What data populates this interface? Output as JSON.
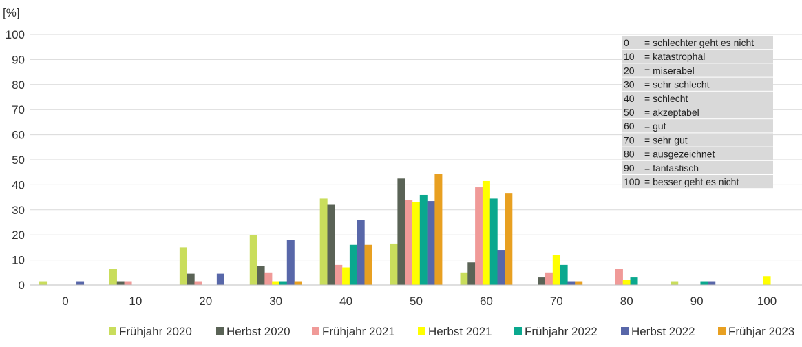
{
  "chart_data": {
    "type": "bar",
    "unit_label": "[%]",
    "categories": [
      "0",
      "10",
      "20",
      "30",
      "40",
      "50",
      "60",
      "70",
      "80",
      "90",
      "100"
    ],
    "ylim": [
      0,
      100
    ],
    "y_ticks": [
      0,
      10,
      20,
      30,
      40,
      50,
      60,
      70,
      80,
      90,
      100
    ],
    "grid": true,
    "legend_position": "bottom",
    "series": [
      {
        "name": "Frühjahr 2020",
        "color": "#c9dd5c",
        "values": [
          1.5,
          6.5,
          15,
          20,
          34.5,
          16.5,
          5,
          0,
          0,
          1.5,
          0
        ]
      },
      {
        "name": "Herbst 2020",
        "color": "#5a6356",
        "values": [
          0,
          1.5,
          4.5,
          7.5,
          32,
          42.5,
          9,
          3,
          0,
          0,
          0
        ]
      },
      {
        "name": "Frühjahr 2021",
        "color": "#f09a98",
        "values": [
          0,
          1.5,
          1.5,
          5,
          8,
          34,
          39,
          5,
          6.5,
          0,
          0
        ]
      },
      {
        "name": "Herbst 2021",
        "color": "#ffff00",
        "values": [
          0,
          0,
          0,
          1.5,
          7,
          33,
          41.5,
          12,
          2,
          0,
          3.5
        ]
      },
      {
        "name": "Frühjahr 2022",
        "color": "#0aa88e",
        "values": [
          0,
          0,
          0,
          1.5,
          16,
          36,
          34.5,
          8,
          3,
          1.5,
          0
        ]
      },
      {
        "name": "Herbst 2022",
        "color": "#5867a9",
        "values": [
          1.5,
          0,
          4.5,
          18,
          26,
          33.5,
          14,
          1.5,
          0,
          1.5,
          0
        ]
      },
      {
        "name": "Frühjar 2023",
        "color": "#e8a021",
        "values": [
          0,
          0,
          0,
          1.5,
          16,
          44.5,
          36.5,
          1.5,
          0,
          0,
          0
        ]
      }
    ],
    "annotation": {
      "lines": [
        {
          "code": "0",
          "text": "= schlechter  geht es nicht"
        },
        {
          "code": "10",
          "text": "= katastrophal"
        },
        {
          "code": "20",
          "text": "= miserabel"
        },
        {
          "code": "30",
          "text": "= sehr schlecht"
        },
        {
          "code": "40",
          "text": "= schlecht"
        },
        {
          "code": "50",
          "text": "= akzeptabel"
        },
        {
          "code": "60",
          "text": "= gut"
        },
        {
          "code": "70",
          "text": "= sehr gut"
        },
        {
          "code": "80",
          "text": "= ausgezeichnet"
        },
        {
          "code": "90",
          "text": "= fantastisch"
        },
        {
          "code": "100",
          "text": "= besser geht es nicht"
        }
      ],
      "background": "#d9d9d9"
    },
    "colors": {
      "grid": "#d9d9d9",
      "axis": "#bfbfbf",
      "text": "#333333"
    }
  }
}
